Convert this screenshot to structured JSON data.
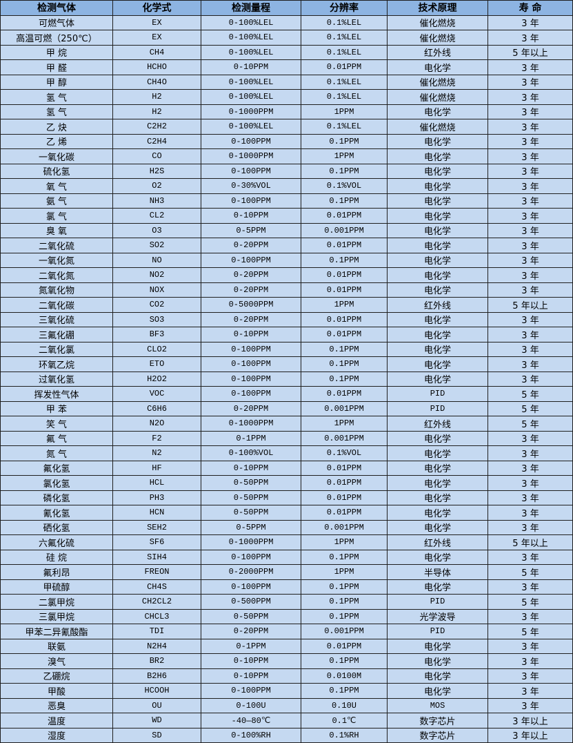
{
  "colors": {
    "header_bg": "#8db4e2",
    "row_bg": "#c5d9f1",
    "border": "#1f1f1f"
  },
  "headers": [
    "检测气体",
    "化学式",
    "检测量程",
    "分辨率",
    "技术原理",
    "寿 命"
  ],
  "rows": [
    [
      "可燃气体",
      "EX",
      "0-100%LEL",
      "0.1%LEL",
      "催化燃烧",
      "3 年"
    ],
    [
      "高温可燃（250℃）",
      "EX",
      "0-100%LEL",
      "0.1%LEL",
      "催化燃烧",
      "3 年"
    ],
    [
      "甲 烷",
      "CH4",
      "0-100%LEL",
      "0.1%LEL",
      "红外线",
      "5 年以上"
    ],
    [
      "甲 醛",
      "HCHO",
      "0-10PPM",
      "0.01PPM",
      "电化学",
      "3 年"
    ],
    [
      "甲 醇",
      "CH4O",
      "0-100%LEL",
      "0.1%LEL",
      "催化燃烧",
      "3 年"
    ],
    [
      "氢 气",
      "H2",
      "0-100%LEL",
      "0.1%LEL",
      "催化燃烧",
      "3 年"
    ],
    [
      "氢 气",
      "H2",
      "0-1000PPM",
      "1PPM",
      "电化学",
      "3 年"
    ],
    [
      "乙 炔",
      "C2H2",
      "0-100%LEL",
      "0.1%LEL",
      "催化燃烧",
      "3 年"
    ],
    [
      "乙 烯",
      "C2H4",
      "0-100PPM",
      "0.1PPM",
      "电化学",
      "3 年"
    ],
    [
      "一氧化碳",
      "CO",
      "0-1000PPM",
      "1PPM",
      "电化学",
      "3 年"
    ],
    [
      "硫化氢",
      "H2S",
      "0-100PPM",
      "0.1PPM",
      "电化学",
      "3 年"
    ],
    [
      "氧 气",
      "O2",
      "0-30%VOL",
      "0.1%VOL",
      "电化学",
      "3 年"
    ],
    [
      "氨 气",
      "NH3",
      "0-100PPM",
      "0.1PPM",
      "电化学",
      "3 年"
    ],
    [
      "氯 气",
      "CL2",
      "0-10PPM",
      "0.01PPM",
      "电化学",
      "3 年"
    ],
    [
      "臭 氧",
      "O3",
      "0-5PPM",
      "0.001PPM",
      "电化学",
      "3 年"
    ],
    [
      "二氧化硫",
      "SO2",
      "0-20PPM",
      "0.01PPM",
      "电化学",
      "3 年"
    ],
    [
      "一氧化氮",
      "NO",
      "0-100PPM",
      "0.1PPM",
      "电化学",
      "3 年"
    ],
    [
      "二氧化氮",
      "NO2",
      "0-20PPM",
      "0.01PPM",
      "电化学",
      "3 年"
    ],
    [
      "氮氧化物",
      "NOX",
      "0-20PPM",
      "0.01PPM",
      "电化学",
      "3 年"
    ],
    [
      "二氧化碳",
      "CO2",
      "0-5000PPM",
      "1PPM",
      "红外线",
      "5 年以上"
    ],
    [
      "三氧化硫",
      "SO3",
      "0-20PPM",
      "0.01PPM",
      "电化学",
      "3 年"
    ],
    [
      "三氟化硼",
      "BF3",
      "0-10PPM",
      "0.01PPM",
      "电化学",
      "3 年"
    ],
    [
      "二氧化氯",
      "CLO2",
      "0-100PPM",
      "0.1PPM",
      "电化学",
      "3 年"
    ],
    [
      "环氧乙烷",
      "ETO",
      "0-100PPM",
      "0.1PPM",
      "电化学",
      "3 年"
    ],
    [
      "过氧化氢",
      "H2O2",
      "0-100PPM",
      "0.1PPM",
      "电化学",
      "3 年"
    ],
    [
      "挥发性气体",
      "VOC",
      "0-100PPM",
      "0.01PPM",
      "PID",
      "5 年"
    ],
    [
      "甲 苯",
      "C6H6",
      "0-20PPM",
      "0.001PPM",
      "PID",
      "5 年"
    ],
    [
      "笑 气",
      "N2O",
      "0-1000PPM",
      "1PPM",
      "红外线",
      "5 年"
    ],
    [
      "氟 气",
      "F2",
      "0-1PPM",
      "0.001PPM",
      "电化学",
      "3 年"
    ],
    [
      "氮 气",
      "N2",
      "0-100%VOL",
      "0.1%VOL",
      "电化学",
      "3 年"
    ],
    [
      "氟化氢",
      "HF",
      "0-10PPM",
      "0.01PPM",
      "电化学",
      "3 年"
    ],
    [
      "氯化氢",
      "HCL",
      "0-50PPM",
      "0.01PPM",
      "电化学",
      "3 年"
    ],
    [
      "磷化氢",
      "PH3",
      "0-50PPM",
      "0.01PPM",
      "电化学",
      "3 年"
    ],
    [
      "氰化氢",
      "HCN",
      "0-50PPM",
      "0.01PPM",
      "电化学",
      "3 年"
    ],
    [
      "硒化氢",
      "SEH2",
      "0-5PPM",
      "0.001PPM",
      "电化学",
      "3 年"
    ],
    [
      "六氟化硫",
      "SF6",
      "0-1000PPM",
      "1PPM",
      "红外线",
      "5 年以上"
    ],
    [
      "硅 烷",
      "SIH4",
      "0-100PPM",
      "0.1PPM",
      "电化学",
      "3 年"
    ],
    [
      "氟利昂",
      "FREON",
      "0-2000PPM",
      "1PPM",
      "半导体",
      "5 年"
    ],
    [
      "甲硫醇",
      "CH4S",
      "0-100PPM",
      "0.1PPM",
      "电化学",
      "3 年"
    ],
    [
      "二氯甲烷",
      "CH2CL2",
      "0-500PPM",
      "0.1PPM",
      "PID",
      "5 年"
    ],
    [
      "三氯甲烷",
      "CHCL3",
      "0-50PPM",
      "0.1PPM",
      "光学波导",
      "3 年"
    ],
    [
      "甲苯二异氰酸酯",
      "TDI",
      "0-20PPM",
      "0.001PPM",
      "PID",
      "5 年"
    ],
    [
      "联氨",
      "N2H4",
      "0-1PPM",
      "0.01PPM",
      "电化学",
      "3 年"
    ],
    [
      "溴气",
      "BR2",
      "0-10PPM",
      "0.1PPM",
      "电化学",
      "3 年"
    ],
    [
      "乙硼烷",
      "B2H6",
      "0-10PPM",
      "0.0100M",
      "电化学",
      "3 年"
    ],
    [
      "甲酸",
      "HCOOH",
      "0-100PPM",
      "0.1PPM",
      "电化学",
      "3 年"
    ],
    [
      "恶臭",
      "OU",
      "0-100U",
      "0.10U",
      "MOS",
      "3 年"
    ],
    [
      "温度",
      "WD",
      "-40—80℃",
      "0.1℃",
      "数字芯片",
      "3 年以上"
    ],
    [
      "湿度",
      "SD",
      "0-100%RH",
      "0.1%RH",
      "数字芯片",
      "3 年以上"
    ]
  ]
}
